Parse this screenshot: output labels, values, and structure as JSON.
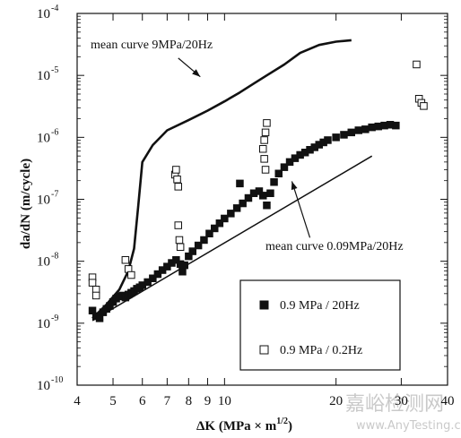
{
  "chart_data": {
    "type": "scatter",
    "x_scale": "log",
    "y_scale": "log",
    "xlim": [
      4,
      40
    ],
    "ylim": [
      1e-10,
      0.0001
    ],
    "xlabel": "ΔK (MPa × m^1/2)",
    "ylabel": "da/dN (m/cycle)",
    "x_ticks_labeled": [
      "4",
      "5",
      "6",
      "7",
      "8",
      "9",
      "10",
      "20",
      "30",
      "40"
    ],
    "y_ticks_labeled": [
      "10^-10",
      "10^-9",
      "10^-8",
      "10^-7",
      "10^-6",
      "10^-5",
      "10^-4"
    ],
    "grid": false,
    "legend_position": "bottom-right",
    "series": [
      {
        "name": "0.9 MPa / 20Hz",
        "marker": "filled-square",
        "points": [
          [
            4.4,
            1.6e-09
          ],
          [
            4.5,
            1.3e-09
          ],
          [
            4.6,
            1.2e-09
          ],
          [
            4.7,
            1.5e-09
          ],
          [
            4.8,
            1.7e-09
          ],
          [
            4.9,
            1.9e-09
          ],
          [
            5.0,
            2.2e-09
          ],
          [
            5.1,
            2.5e-09
          ],
          [
            5.2,
            2.7e-09
          ],
          [
            5.3,
            2.8e-09
          ],
          [
            5.4,
            2.6e-09
          ],
          [
            5.5,
            2.9e-09
          ],
          [
            5.6,
            3.1e-09
          ],
          [
            5.7,
            3.3e-09
          ],
          [
            5.8,
            3.6e-09
          ],
          [
            5.9,
            3.8e-09
          ],
          [
            6.0,
            4.1e-09
          ],
          [
            6.2,
            4.6e-09
          ],
          [
            6.4,
            5.3e-09
          ],
          [
            6.6,
            6.2e-09
          ],
          [
            6.8,
            7.2e-09
          ],
          [
            7.0,
            8.2e-09
          ],
          [
            7.2,
            9.4e-09
          ],
          [
            7.4,
            1.05e-08
          ],
          [
            7.6,
            9e-09
          ],
          [
            7.7,
            6.8e-09
          ],
          [
            7.8,
            8.6e-09
          ],
          [
            8.0,
            1.2e-08
          ],
          [
            8.2,
            1.45e-08
          ],
          [
            8.5,
            1.8e-08
          ],
          [
            8.8,
            2.2e-08
          ],
          [
            9.1,
            2.8e-08
          ],
          [
            9.4,
            3.4e-08
          ],
          [
            9.7,
            4.1e-08
          ],
          [
            10.0,
            4.9e-08
          ],
          [
            10.4,
            5.9e-08
          ],
          [
            10.8,
            7.2e-08
          ],
          [
            11.2,
            8.6e-08
          ],
          [
            11.6,
            1.05e-07
          ],
          [
            12.0,
            1.25e-07
          ],
          [
            12.4,
            1.35e-07
          ],
          [
            12.7,
            1.15e-07
          ],
          [
            13.0,
            8e-08
          ],
          [
            13.3,
            1.25e-07
          ],
          [
            13.6,
            1.9e-07
          ],
          [
            14.0,
            2.6e-07
          ],
          [
            14.5,
            3.3e-07
          ],
          [
            15.0,
            4e-07
          ],
          [
            15.5,
            4.6e-07
          ],
          [
            16.0,
            5.2e-07
          ],
          [
            16.5,
            5.7e-07
          ],
          [
            17.0,
            6.3e-07
          ],
          [
            17.5,
            6.9e-07
          ],
          [
            18.0,
            7.6e-07
          ],
          [
            18.5,
            8.3e-07
          ],
          [
            19.0,
            9e-07
          ],
          [
            20.0,
            1e-06
          ],
          [
            21.0,
            1.1e-06
          ],
          [
            22.0,
            1.2e-06
          ],
          [
            23.0,
            1.3e-06
          ],
          [
            24.0,
            1.35e-06
          ],
          [
            25.0,
            1.45e-06
          ],
          [
            26.0,
            1.5e-06
          ],
          [
            27.0,
            1.55e-06
          ],
          [
            28.0,
            1.6e-06
          ],
          [
            29.0,
            1.55e-06
          ],
          [
            11.0,
            1.8e-07
          ]
        ]
      },
      {
        "name": "0.9 MPa / 0.2Hz",
        "marker": "open-square",
        "points": [
          [
            4.4,
            5.5e-09
          ],
          [
            4.4,
            4.5e-09
          ],
          [
            4.5,
            3.5e-09
          ],
          [
            4.5,
            2.8e-09
          ],
          [
            5.4,
            1.05e-08
          ],
          [
            5.5,
            7.5e-09
          ],
          [
            5.6,
            6e-09
          ],
          [
            7.35,
            2.5e-07
          ],
          [
            7.4,
            3e-07
          ],
          [
            7.45,
            2.1e-07
          ],
          [
            7.5,
            1.6e-07
          ],
          [
            7.5,
            3.8e-08
          ],
          [
            7.55,
            2.2e-08
          ],
          [
            7.6,
            1.7e-08
          ],
          [
            13.0,
            1.7e-06
          ],
          [
            12.9,
            1.2e-06
          ],
          [
            12.8,
            9e-07
          ],
          [
            12.7,
            6.5e-07
          ],
          [
            12.8,
            4.5e-07
          ],
          [
            12.9,
            3e-07
          ],
          [
            33.0,
            1.5e-05
          ],
          [
            33.5,
            4.2e-06
          ],
          [
            34.0,
            3.6e-06
          ],
          [
            34.5,
            3.2e-06
          ]
        ]
      }
    ],
    "curves": [
      {
        "label": "mean curve 9MPa/20Hz",
        "points": [
          [
            4.4,
            1.2e-09
          ],
          [
            4.8,
            2e-09
          ],
          [
            5.2,
            3.5e-09
          ],
          [
            5.5,
            7e-09
          ],
          [
            5.7,
            1.6e-08
          ],
          [
            5.85,
            8e-08
          ],
          [
            6.0,
            4e-07
          ],
          [
            6.4,
            7.5e-07
          ],
          [
            7.0,
            1.3e-06
          ],
          [
            8.0,
            1.9e-06
          ],
          [
            9.0,
            2.7e-06
          ],
          [
            10.0,
            3.8e-06
          ],
          [
            11.0,
            5.3e-06
          ],
          [
            12.0,
            7.4e-06
          ],
          [
            13.0,
            1e-05
          ],
          [
            14.5,
            1.5e-05
          ],
          [
            16.0,
            2.3e-05
          ],
          [
            18.0,
            3.1e-05
          ],
          [
            20.0,
            3.5e-05
          ],
          [
            22.0,
            3.7e-05
          ]
        ]
      },
      {
        "label": "mean curve 0.09MPa/20Hz",
        "points": [
          [
            4.4,
            1.1e-09
          ],
          [
            25.0,
            5e-07
          ]
        ]
      }
    ],
    "annotations": [
      {
        "text": "mean curve 9MPa/20Hz",
        "arrow_from": [
          7.5,
          1.9e-05
        ],
        "arrow_to": [
          8.6,
          9.5e-06
        ]
      },
      {
        "text": "mean curve 0.09MPa/20Hz",
        "arrow_from": [
          17.0,
          2.4e-08
        ],
        "arrow_to": [
          15.2,
          1.95e-07
        ]
      }
    ]
  },
  "watermark": {
    "cn": "嘉峪检测网",
    "en": "www.AnyTesting.com"
  }
}
